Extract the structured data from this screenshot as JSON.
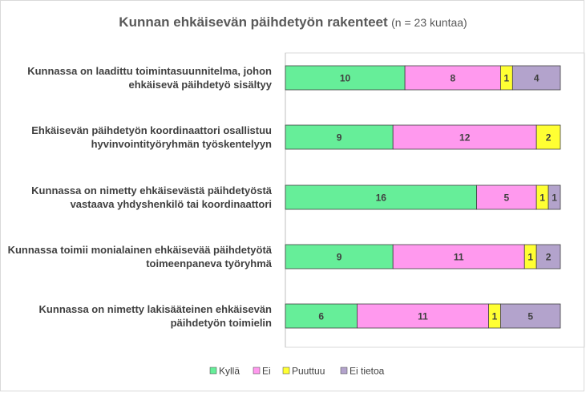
{
  "chart_data": {
    "type": "bar",
    "orientation": "horizontal",
    "stacked": true,
    "title": "Kunnan ehkäisevän päihdetyön rakenteet",
    "subtitle": "(n = 23 kuntaa)",
    "categories": [
      [
        "Kunnassa on laadittu toimintasuunnitelma, johon",
        "ehkäisevä päihdetyö sisältyy"
      ],
      [
        "Ehkäisevän päihdetyön koordinaattori osallistuu",
        "hyvinvointityöryhmän työskentelyyn"
      ],
      [
        "Kunnassa on nimetty ehkäisevästä päihdetyöstä",
        "vastaava yhdyshenkilö tai koordinaattori"
      ],
      [
        "Kunnassa toimii monialainen ehkäisevää päihdetyötä",
        "toimeenpaneva työryhmä"
      ],
      [
        "Kunnassa on nimetty lakisääteinen ehkäisevän",
        "päihdetyön toimielin"
      ]
    ],
    "series": [
      {
        "name": "Kyllä",
        "color": "#66ee99",
        "values": [
          10,
          9,
          16,
          9,
          6
        ]
      },
      {
        "name": "Ei",
        "color": "#ff99ee",
        "values": [
          8,
          12,
          5,
          11,
          11
        ]
      },
      {
        "name": "Puuttuu",
        "color": "#ffff33",
        "values": [
          1,
          2,
          1,
          1,
          1
        ]
      },
      {
        "name": "Ei tietoa",
        "color": "#b3a3cc",
        "values": [
          4,
          0,
          1,
          2,
          5
        ]
      }
    ],
    "xlim": [
      0,
      23
    ],
    "grid": false,
    "legend_position": "bottom"
  }
}
